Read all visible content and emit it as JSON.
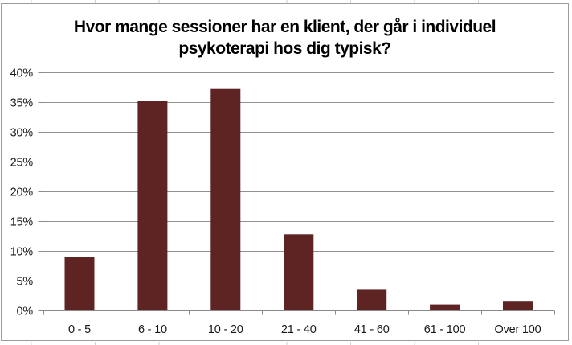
{
  "chart_data": {
    "type": "bar",
    "title": "Hvor mange sessioner har en klient, der går i individuel psykoterapi hos dig typisk?",
    "categories": [
      "0 - 5",
      "6 - 10",
      "10 - 20",
      "21 - 40",
      "41 - 60",
      "61 - 100",
      "Over 100"
    ],
    "values": [
      9.0,
      35.2,
      37.2,
      12.8,
      3.6,
      1.0,
      1.6
    ],
    "xlabel": "",
    "ylabel": "",
    "ylim": [
      0,
      40
    ],
    "ytick_step": 5,
    "ytick_suffix": "%",
    "grid": true,
    "legend_position": "none",
    "bar_color": "#5e2423"
  },
  "style": {
    "bar_color": "#5e2423",
    "gridline_color": "#919191",
    "axis_color": "#8a8a8a",
    "tick_label_color": "#1a1a1a",
    "title_color": "#000000",
    "frame_border_color": "#9b9b9b",
    "cell_gridline_color": "#d2d2d2",
    "background_color": "#ffffff"
  }
}
